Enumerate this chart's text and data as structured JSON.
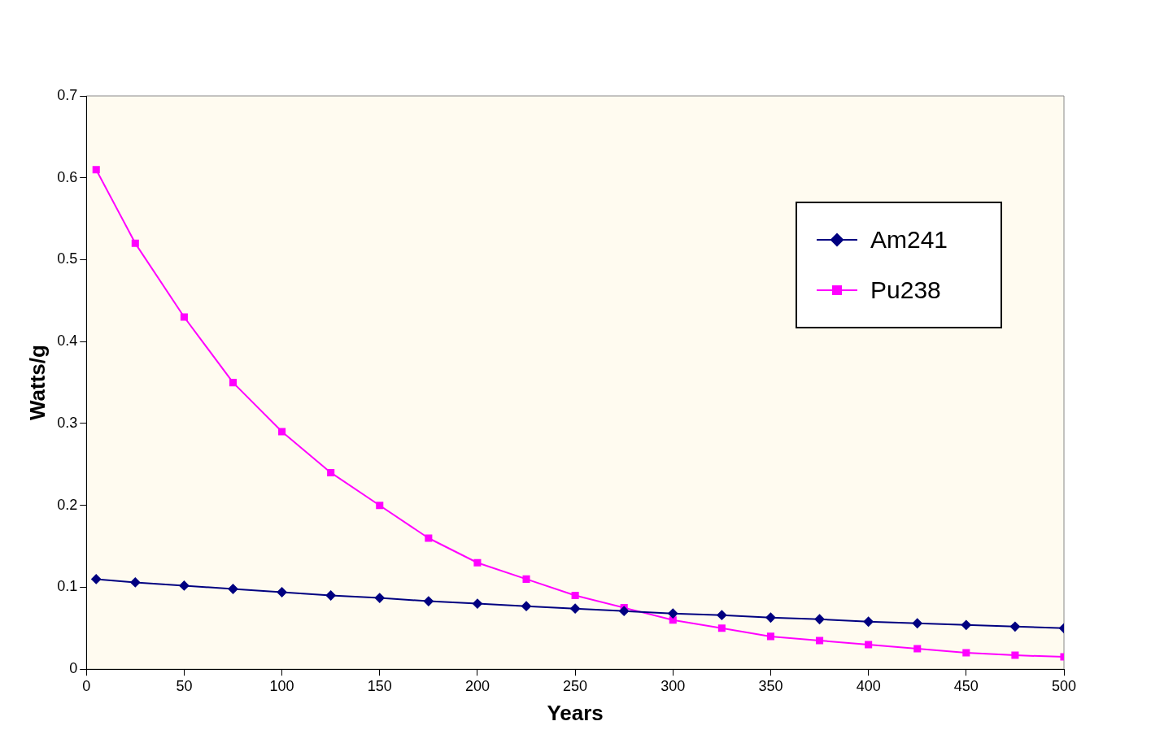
{
  "chart_data": {
    "type": "line",
    "xlabel": "Years",
    "ylabel": "Watts/g",
    "xlim": [
      0,
      500
    ],
    "xticks": [
      0,
      50,
      100,
      150,
      200,
      250,
      300,
      350,
      400,
      450,
      500
    ],
    "ylim": [
      0,
      0.7
    ],
    "yticks": [
      0,
      0.1,
      0.2,
      0.3,
      0.4,
      0.5,
      0.6,
      0.7
    ],
    "grid": false,
    "legend": "top right",
    "x": [
      5,
      25,
      50,
      75,
      100,
      125,
      150,
      175,
      200,
      225,
      250,
      275,
      300,
      325,
      350,
      375,
      400,
      425,
      450,
      475,
      500
    ],
    "series": [
      {
        "name": "Am241",
        "color": "#000080",
        "marker": "diamond",
        "values": [
          0.11,
          0.106,
          0.102,
          0.098,
          0.094,
          0.09,
          0.087,
          0.083,
          0.08,
          0.077,
          0.074,
          0.071,
          0.068,
          0.066,
          0.063,
          0.061,
          0.058,
          0.056,
          0.054,
          0.052,
          0.05
        ]
      },
      {
        "name": "Pu238",
        "color": "#ff00ff",
        "marker": "square",
        "values": [
          0.61,
          0.52,
          0.43,
          0.35,
          0.29,
          0.24,
          0.2,
          0.16,
          0.13,
          0.11,
          0.09,
          0.075,
          0.06,
          0.05,
          0.04,
          0.035,
          0.03,
          0.025,
          0.02,
          0.017,
          0.015
        ]
      }
    ]
  }
}
